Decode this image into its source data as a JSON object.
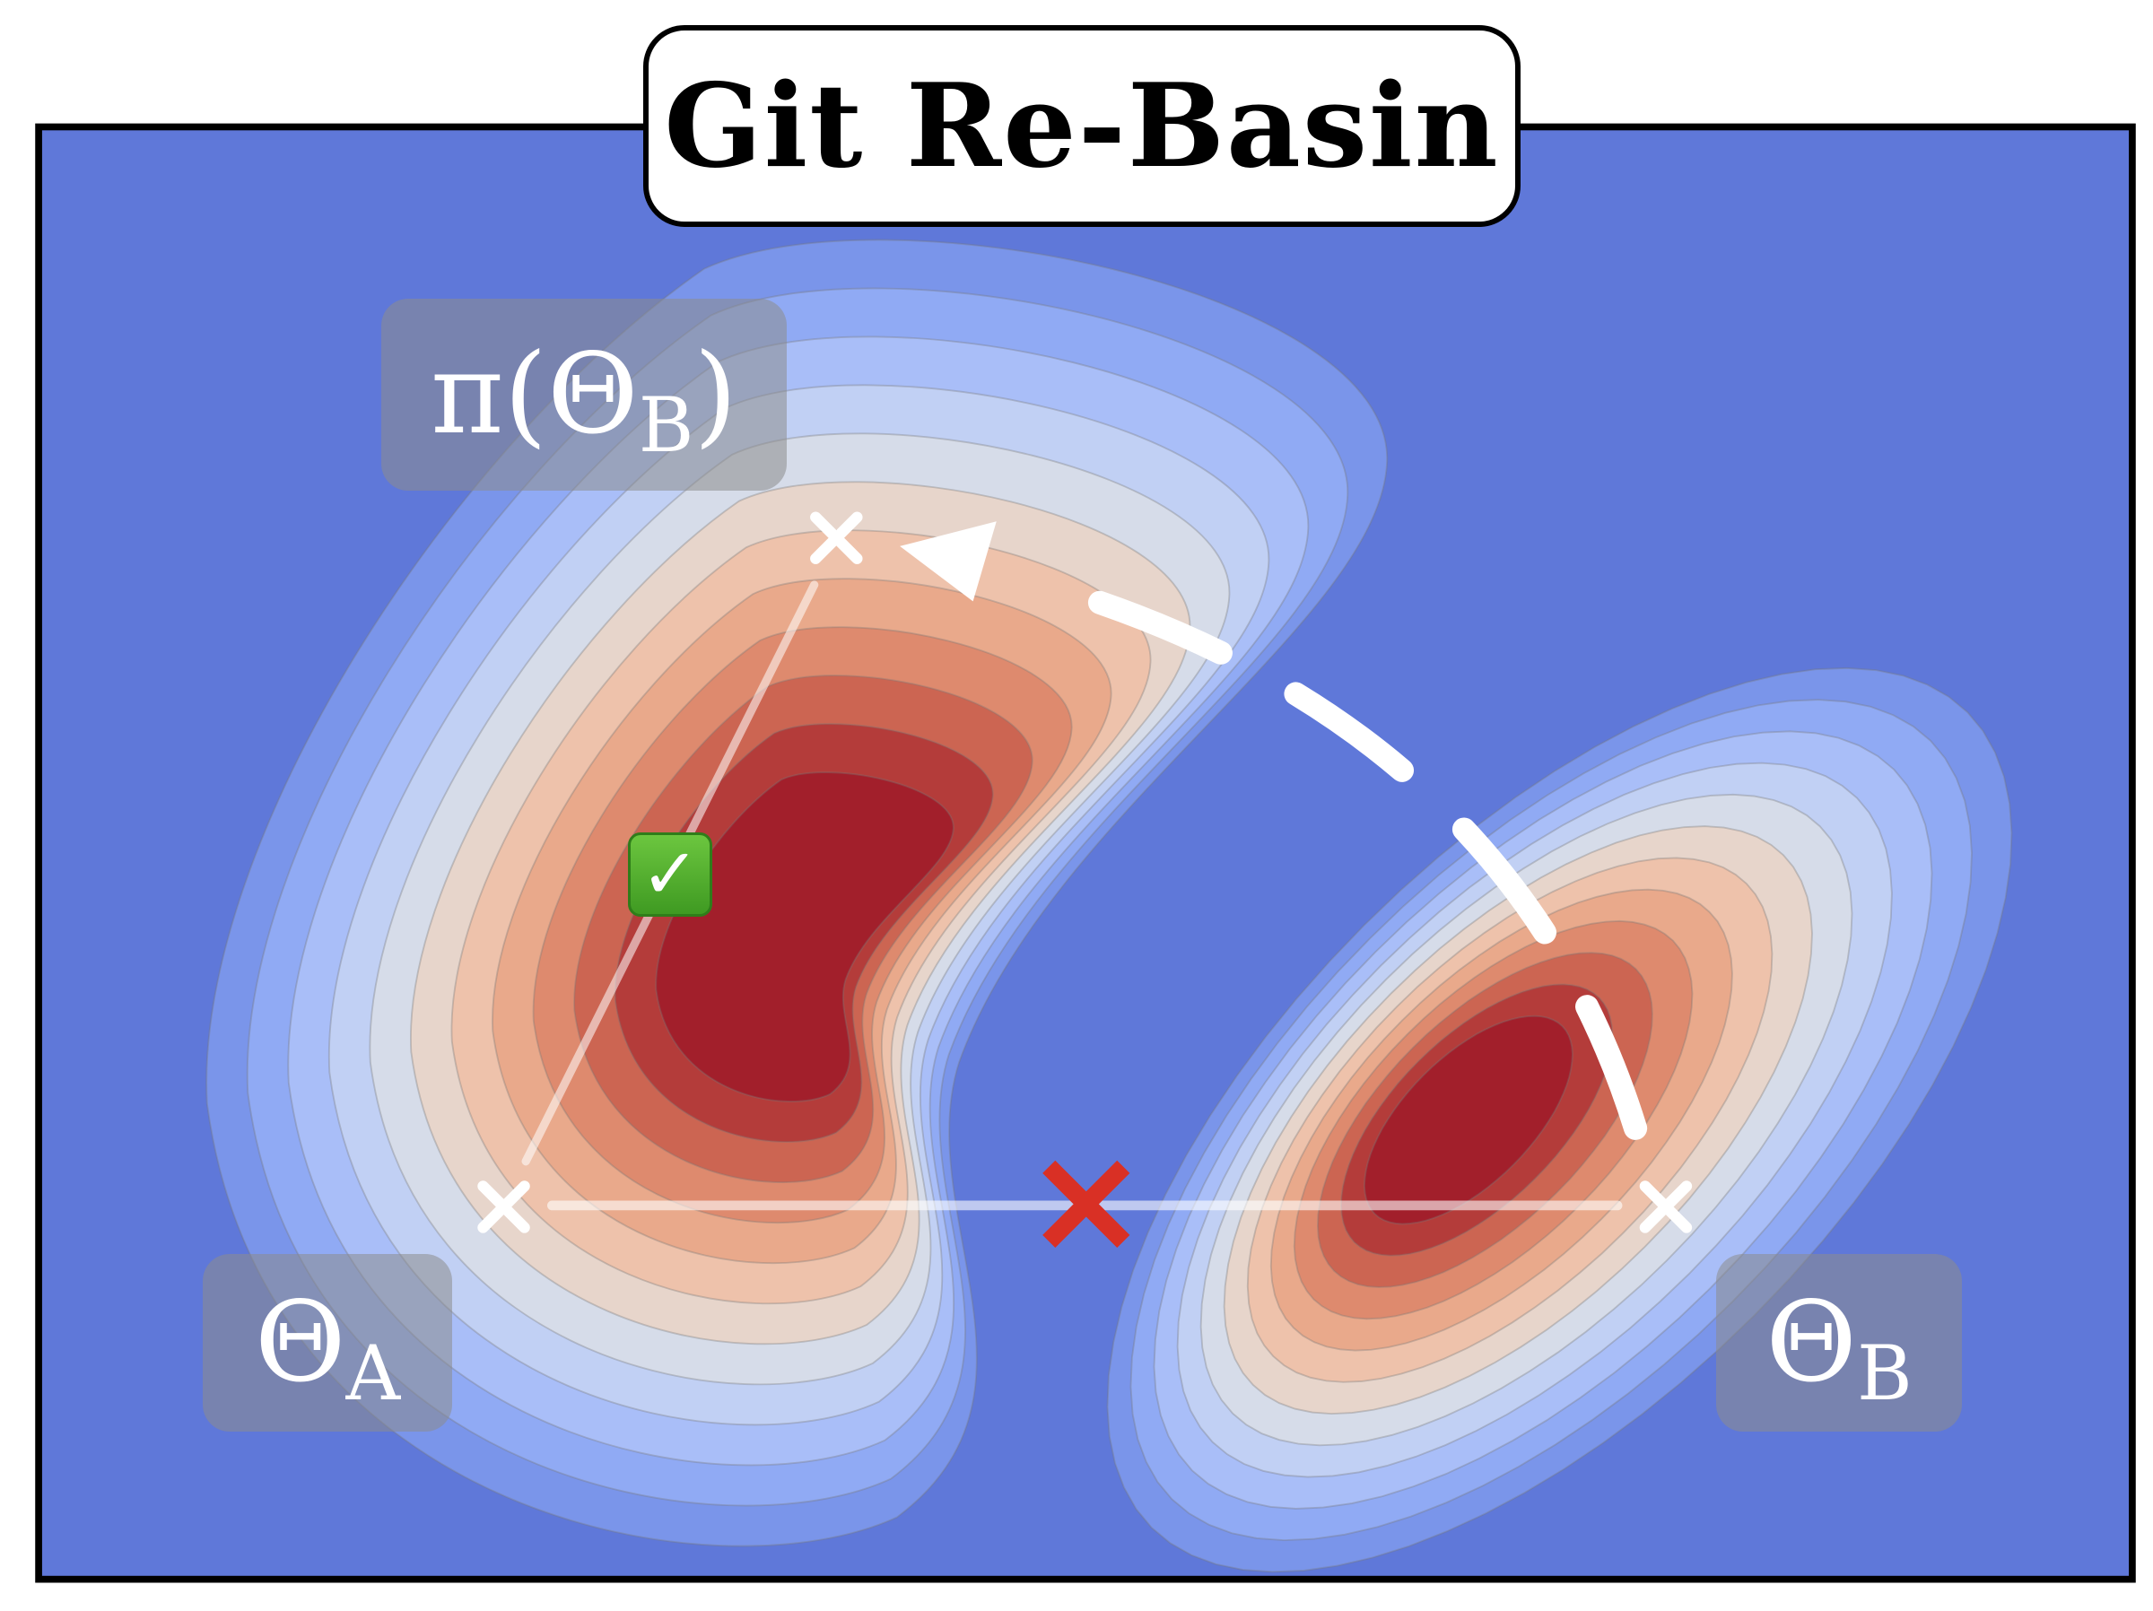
{
  "title": "Git Re-Basin",
  "labels": {
    "theta_a": {
      "main": "Θ",
      "sub": "A"
    },
    "theta_b": {
      "main": "Θ",
      "sub": "B"
    },
    "pi_theta_b": {
      "pre": "π(Θ",
      "sub": "B",
      "post": ")"
    }
  },
  "icons": {
    "check": "✓",
    "success_marker": "check-mark-button-emoji",
    "failure_marker": "red-cross"
  },
  "colors": {
    "background": "#5f78d9",
    "contour_levels": [
      "#7a95ea",
      "#90aaf4",
      "#a9bef8",
      "#c1d0f4",
      "#d6dce9",
      "#e7d5cb",
      "#eec2ab",
      "#e9a98b",
      "#de8a6e",
      "#cc6552",
      "#b43c3a",
      "#a21f2b"
    ],
    "failure": "#d93025",
    "success": "#4caf2a"
  }
}
